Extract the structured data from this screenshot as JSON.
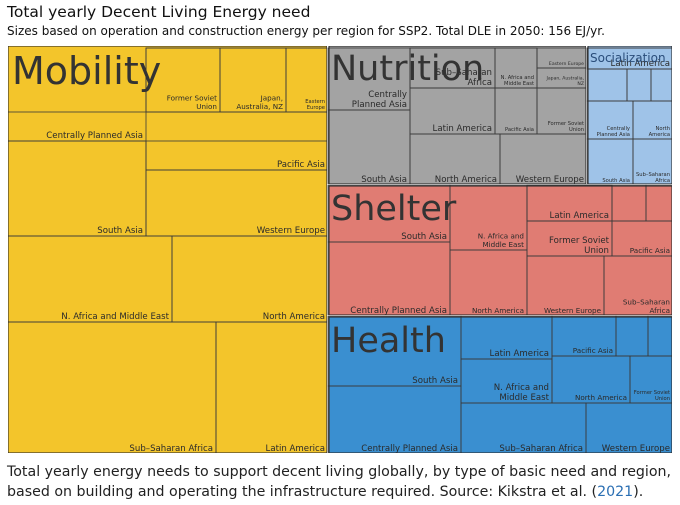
{
  "title": "Total yearly Decent Living Energy need",
  "subtitle": "Sizes based on operation and construction energy per region for SSP2. Total DLE in 2050: 156 EJ/yr.",
  "caption": {
    "text_before": "Total yearly energy needs to support decent living globally, by type of basic need and region, based on building and operating the infrastructure required. Source: Kikstra et al. (",
    "link_text": "2021",
    "text_after": ")."
  },
  "chart_data": {
    "type": "treemap",
    "title": "Total yearly Decent Living Energy need",
    "total_label": "Total DLE in 2050: 156 EJ/yr.",
    "groups": [
      {
        "name": "Mobility",
        "color": "#f3c52b",
        "cells": [
          {
            "label": "Former Soviet Union"
          },
          {
            "label": "Japan, Australia, NZ"
          },
          {
            "label": "Eastern Europe"
          },
          {
            "label": "Centrally Planned Asia"
          },
          {
            "label": "Pacific Asia"
          },
          {
            "label": "South Asia"
          },
          {
            "label": "Western Europe"
          },
          {
            "label": "N. Africa and Middle East"
          },
          {
            "label": "North America"
          },
          {
            "label": "Sub–Saharan Africa"
          },
          {
            "label": "Latin America"
          }
        ]
      },
      {
        "name": "Nutrition",
        "color": "#a3a3a3",
        "cells": [
          {
            "label": "Centrally Planned Asia"
          },
          {
            "label": "Sub–Saharan Africa"
          },
          {
            "label": "N. Africa and Middle East"
          },
          {
            "label": "Eastern Europe"
          },
          {
            "label": "Japan, Australia, NZ"
          },
          {
            "label": "Latin America"
          },
          {
            "label": "Pacific Asia"
          },
          {
            "label": "Former Soviet Union"
          },
          {
            "label": "South Asia"
          },
          {
            "label": "North America"
          },
          {
            "label": "Western Europe"
          }
        ]
      },
      {
        "name": "Socialization",
        "color": "#9fc3e8",
        "cells": [
          {
            "label": "Latin America"
          },
          {
            "label": "Centrally Planned Asia"
          },
          {
            "label": "North America"
          },
          {
            "label": "South Asia"
          },
          {
            "label": "Sub–Saharan Africa"
          }
        ]
      },
      {
        "name": "Shelter",
        "color": "#e07c73",
        "cells": [
          {
            "label": "South Asia"
          },
          {
            "label": "N. Africa and Middle East"
          },
          {
            "label": "Latin America"
          },
          {
            "label": "Former Soviet Union"
          },
          {
            "label": "Pacific Asia"
          },
          {
            "label": "Centrally Planned Asia"
          },
          {
            "label": "North America"
          },
          {
            "label": "Western Europe"
          },
          {
            "label": "Sub–Saharan Africa"
          }
        ]
      },
      {
        "name": "Health",
        "color": "#3a8fd0",
        "cells": [
          {
            "label": "Latin America"
          },
          {
            "label": "Pacific Asia"
          },
          {
            "label": "South Asia"
          },
          {
            "label": "N. Africa and Middle East"
          },
          {
            "label": "North America"
          },
          {
            "label": "Former Soviet Union"
          },
          {
            "label": "Centrally Planned Asia"
          },
          {
            "label": "Sub–Saharan Africa"
          },
          {
            "label": "Western Europe"
          }
        ]
      }
    ]
  }
}
